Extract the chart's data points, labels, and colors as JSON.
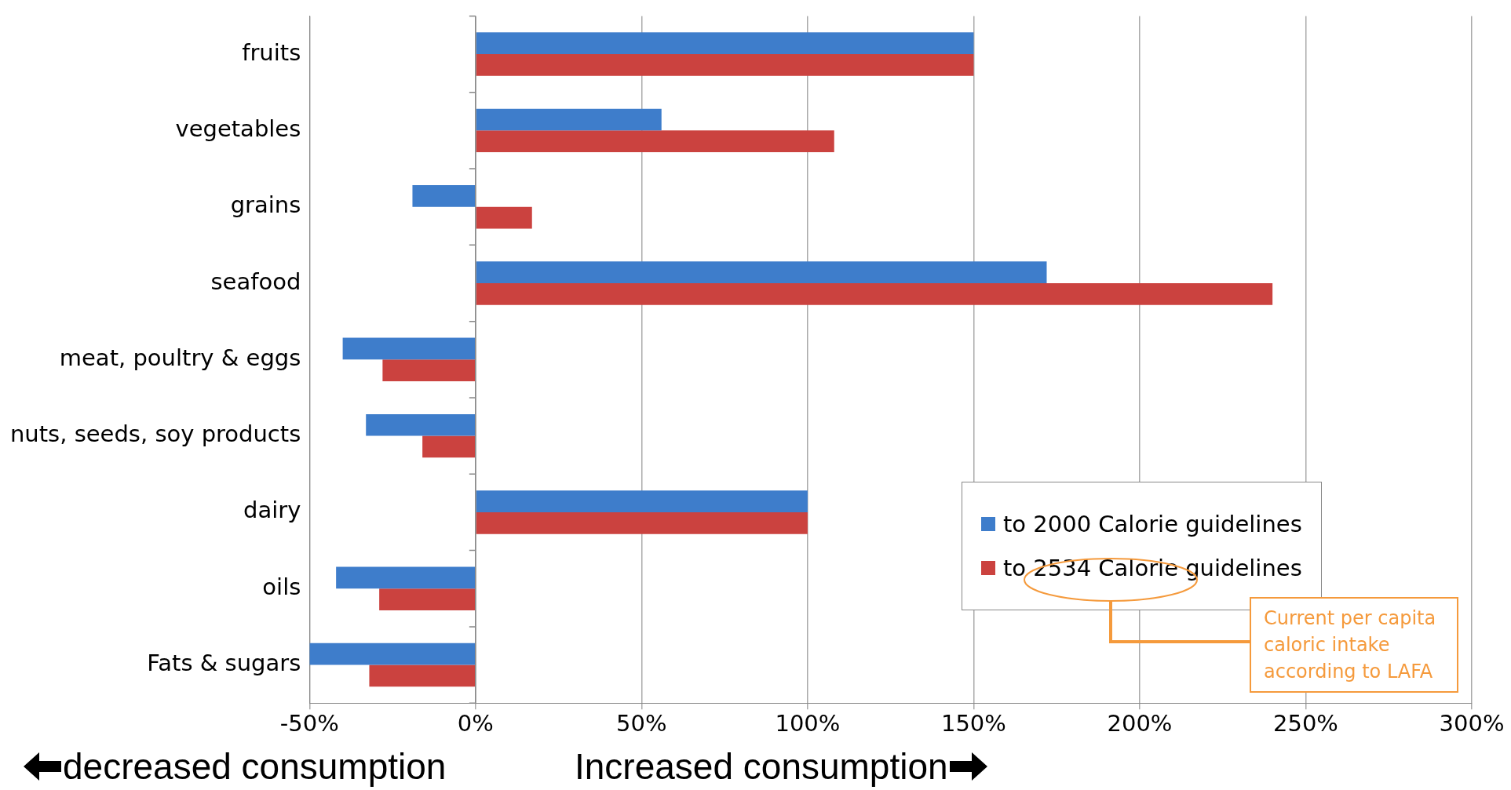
{
  "chart_data": {
    "type": "bar",
    "orientation": "horizontal",
    "categories": [
      "fruits",
      "vegetables",
      "grains",
      "seafood",
      "meat, poultry & eggs",
      "nuts, seeds, soy products",
      "dairy",
      "oils",
      "Fats & sugars"
    ],
    "series": [
      {
        "name": "to 2000 Calorie guidelines",
        "color": "#3e7dcb",
        "values": [
          150,
          56,
          -19,
          172,
          -40,
          -33,
          100,
          -42,
          -50
        ]
      },
      {
        "name": "to 2534 Calorie guidelines",
        "color": "#cb423f",
        "values": [
          150,
          108,
          17,
          240,
          -28,
          -16,
          100,
          -29,
          -32
        ]
      }
    ],
    "xlim": [
      -50,
      300
    ],
    "xticks": [
      {
        "value": -50,
        "label": "-50%"
      },
      {
        "value": 0,
        "label": "0%"
      },
      {
        "value": 50,
        "label": "50%"
      },
      {
        "value": 100,
        "label": "100%"
      },
      {
        "value": 150,
        "label": "150%"
      },
      {
        "value": 200,
        "label": "200%"
      },
      {
        "value": 250,
        "label": "250%"
      },
      {
        "value": 300,
        "label": "300%"
      }
    ],
    "grid": "x",
    "legend": "bottom right",
    "annotations": [
      "decreased consumption",
      "Increased consumption",
      "Current per capita caloric intake according to LAFA"
    ]
  }
}
